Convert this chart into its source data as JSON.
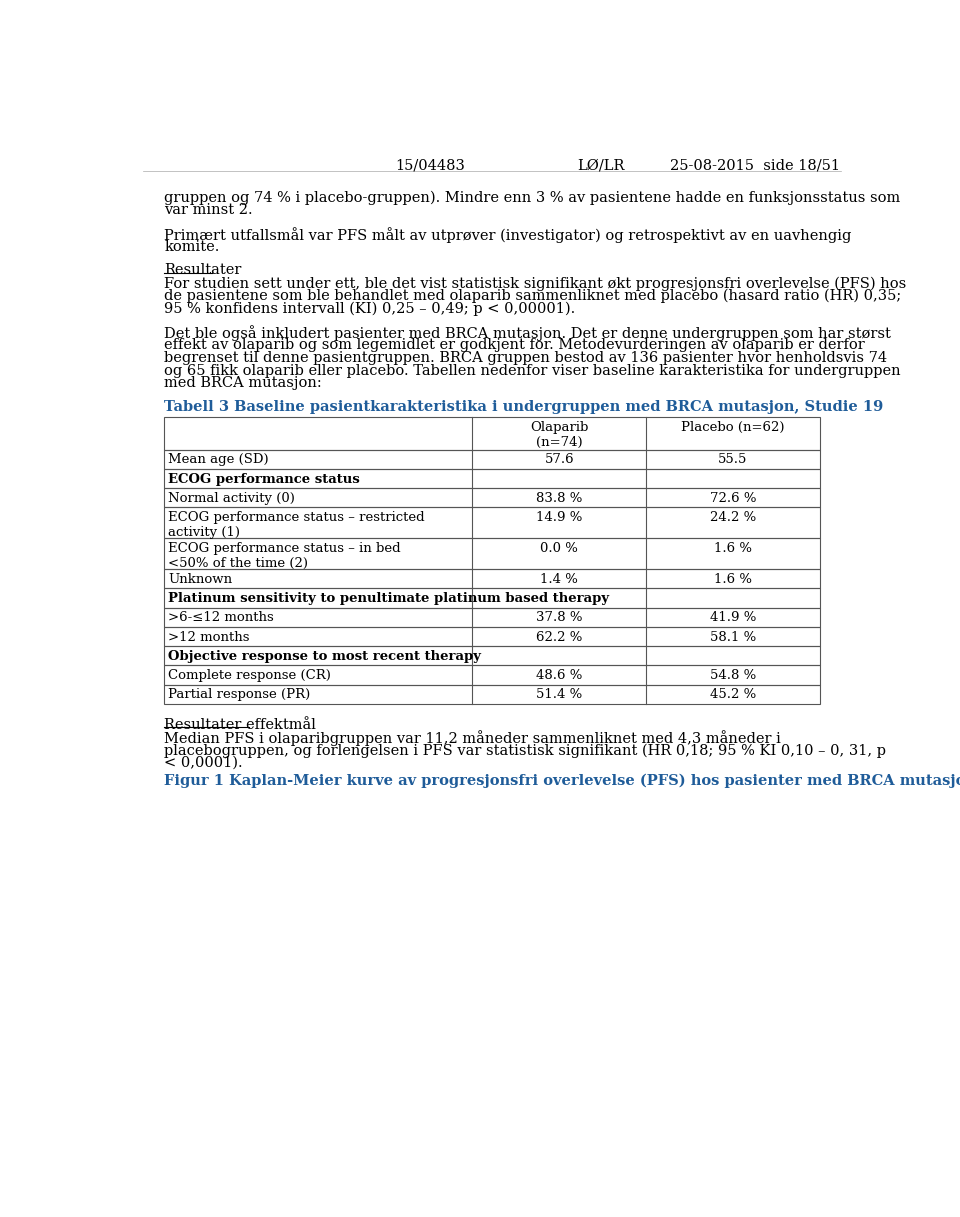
{
  "header_left": "15/04483",
  "header_center": "LØ/LR",
  "header_right": "25-08-2015  side 18/51",
  "table_title": "Tabell 3 Baseline pasientkarakteristika i undergruppen med BRCA mutasjon, Studie 19",
  "table_title_color": "#1F5C99",
  "table_rows": [
    {
      "label": "Mean age (SD)",
      "col1": "57.6",
      "col2": "55.5",
      "bold": false
    },
    {
      "label": "ECOG performance status",
      "col1": "",
      "col2": "",
      "bold": true
    },
    {
      "label": "Normal activity (0)",
      "col1": "83.8 %",
      "col2": "72.6 %",
      "bold": false
    },
    {
      "label": "ECOG performance status – restricted\nactivity (1)",
      "col1": "14.9 %",
      "col2": "24.2 %",
      "bold": false
    },
    {
      "label": "ECOG performance status – in bed\n<50% of the time (2)",
      "col1": "0.0 %",
      "col2": "1.6 %",
      "bold": false
    },
    {
      "label": "Unknown",
      "col1": "1.4 %",
      "col2": "1.6 %",
      "bold": false
    },
    {
      "label": "Platinum sensitivity to penultimate platinum based therapy",
      "col1": "",
      "col2": "",
      "bold": true
    },
    {
      "label": ">6-≤12 months",
      "col1": "37.8 %",
      "col2": "41.9 %",
      "bold": false
    },
    {
      "label": ">12 months",
      "col1": "62.2 %",
      "col2": "58.1 %",
      "bold": false
    },
    {
      "label": "Objective response to most recent therapy",
      "col1": "",
      "col2": "",
      "bold": true
    },
    {
      "label": "Complete response (CR)",
      "col1": "48.6 %",
      "col2": "54.8 %",
      "bold": false
    },
    {
      "label": "Partial response (PR)",
      "col1": "51.4 %",
      "col2": "45.2 %",
      "bold": false
    }
  ],
  "footer_last_color": "#1F5C99",
  "bg_color": "#ffffff",
  "text_color": "#000000"
}
